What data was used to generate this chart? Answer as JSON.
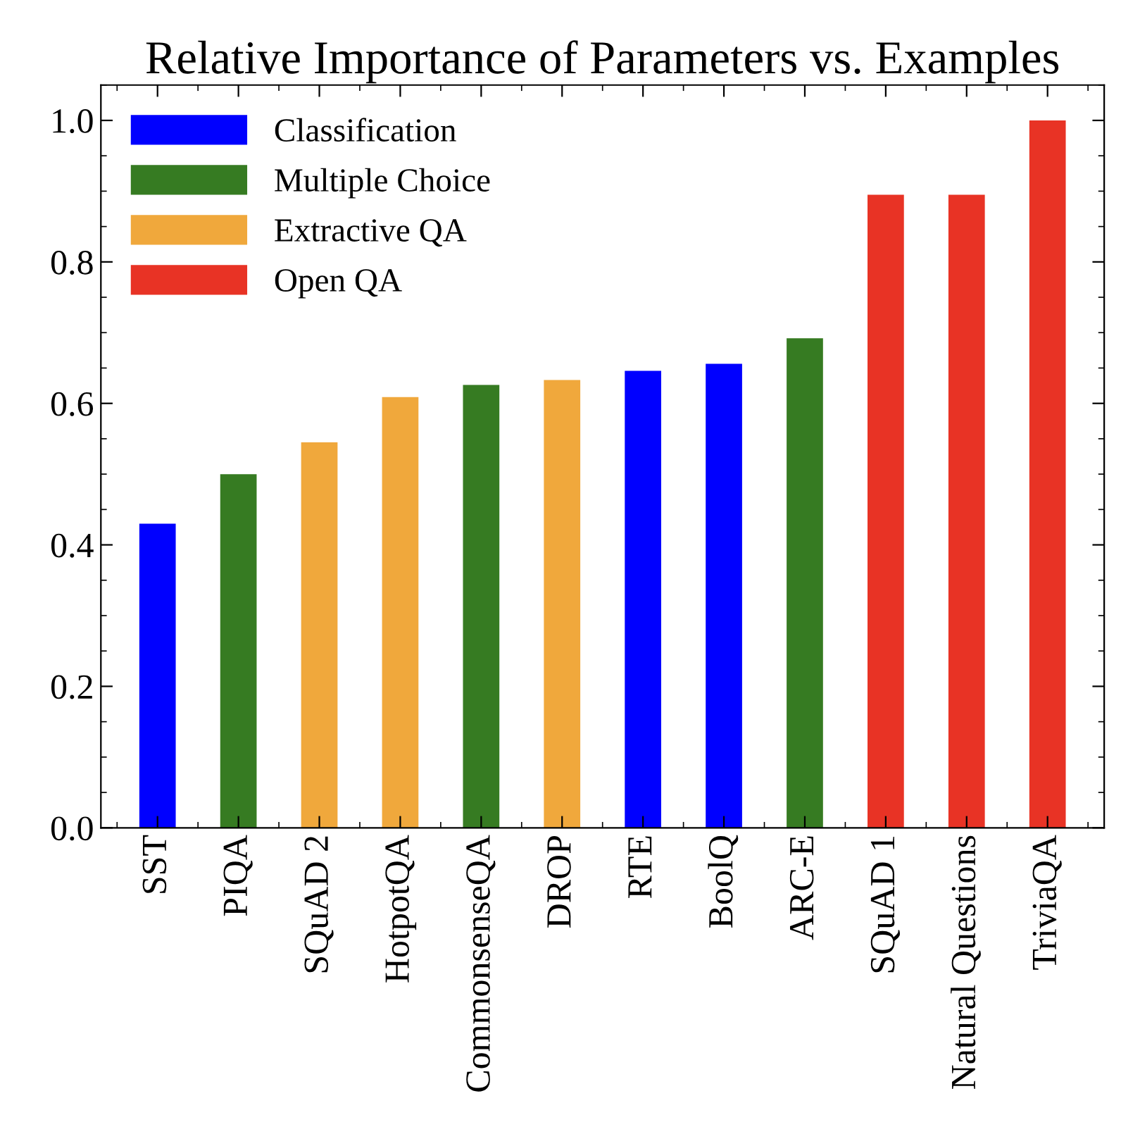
{
  "chart_data": {
    "type": "bar",
    "title": "Relative Importance of Parameters vs. Examples",
    "categories": [
      "SST",
      "PIQA",
      "SQuAD 2",
      "HotpotQA",
      "CommonsenseQA",
      "DROP",
      "RTE",
      "BoolQ",
      "ARC-E",
      "SQuAD 1",
      "Natural Questions",
      "TriviaQA"
    ],
    "series": [
      {
        "name": "Classification",
        "color": "#0000ff",
        "values": [
          0.43,
          null,
          null,
          null,
          null,
          null,
          0.646,
          0.656,
          null,
          null,
          null,
          null
        ]
      },
      {
        "name": "Multiple Choice",
        "color": "#367b22",
        "values": [
          null,
          0.5,
          null,
          null,
          0.626,
          null,
          null,
          null,
          0.692,
          null,
          null,
          null
        ]
      },
      {
        "name": "Extractive QA",
        "color": "#f0a83c",
        "values": [
          null,
          null,
          0.545,
          0.609,
          null,
          0.633,
          null,
          null,
          null,
          null,
          null,
          null
        ]
      },
      {
        "name": "Open QA",
        "color": "#e83325",
        "values": [
          null,
          null,
          null,
          null,
          null,
          null,
          null,
          null,
          null,
          0.895,
          0.895,
          1.0
        ]
      }
    ],
    "ylim": [
      0,
      1.05
    ],
    "yticks": [
      {
        "value": 0,
        "label": "0.0"
      },
      0.2,
      0.4,
      0.6,
      0.8,
      {
        "value": 1,
        "label": "1.0"
      }
    ],
    "grid": false,
    "legend": "top left"
  }
}
